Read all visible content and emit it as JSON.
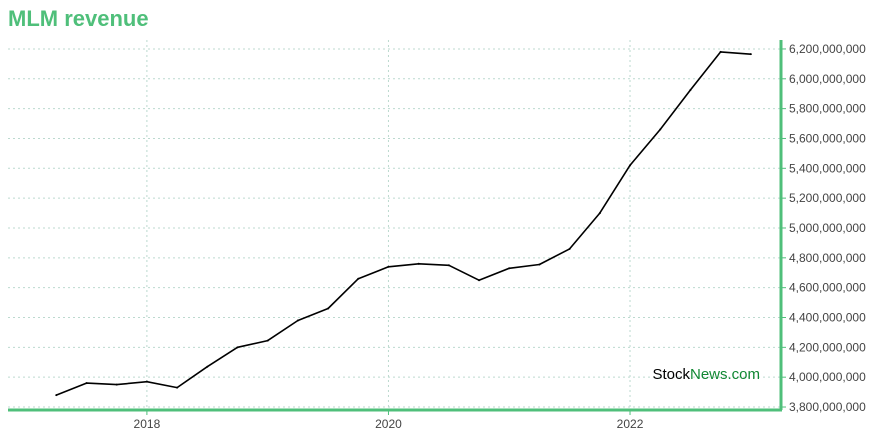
{
  "chart_data": {
    "type": "line",
    "title": "MLM revenue",
    "xlabel": "",
    "ylabel": "",
    "x_tick_labels": [
      "2018",
      "2020",
      "2022"
    ],
    "x_ticks": [
      2018,
      2020,
      2022
    ],
    "xlim": [
      2016.85,
      2023.25
    ],
    "ylim": [
      3780000000,
      6260000000
    ],
    "y_ticks": [
      3800000000,
      4000000000,
      4200000000,
      4400000000,
      4600000000,
      4800000000,
      5000000000,
      5200000000,
      5400000000,
      5600000000,
      5800000000,
      6000000000,
      6200000000
    ],
    "y_tick_labels": [
      "3,800,000,000",
      "4,000,000,000",
      "4,200,000,000",
      "4,400,000,000",
      "4,600,000,000",
      "4,800,000,000",
      "5,000,000,000",
      "5,200,000,000",
      "5,400,000,000",
      "5,600,000,000",
      "5,800,000,000",
      "6,000,000,000",
      "6,200,000,000"
    ],
    "y_axis_position": "right",
    "grid": true,
    "series": [
      {
        "x": [
          2017.25,
          2017.5,
          2017.75,
          2018.0,
          2018.25,
          2018.5,
          2018.75,
          2019.0,
          2019.25,
          2019.5,
          2019.75,
          2020.0,
          2020.25,
          2020.5,
          2020.75,
          2021.0,
          2021.25,
          2021.5,
          2021.75,
          2022.0,
          2022.25,
          2022.5,
          2022.75,
          2023.0
        ],
        "values": [
          3880000000,
          3960000000,
          3950000000,
          3970000000,
          3930000000,
          4070000000,
          4200000000,
          4245000000,
          4380000000,
          4460000000,
          4660000000,
          4740000000,
          4760000000,
          4750000000,
          4650000000,
          4730000000,
          4755000000,
          4860000000,
          5100000000,
          5420000000,
          5660000000,
          5925000000,
          6180000000,
          6165000000
        ]
      }
    ],
    "colors": {
      "title": "#4fbf7a",
      "axis": "#4fbf7a",
      "grid": "#bcd9cf",
      "line": "#000000",
      "tick_text": "#444444",
      "watermark_stock": "#000000",
      "watermark_news": "#118833"
    }
  },
  "watermark": {
    "part1": "Stock",
    "part2": "News.com"
  }
}
